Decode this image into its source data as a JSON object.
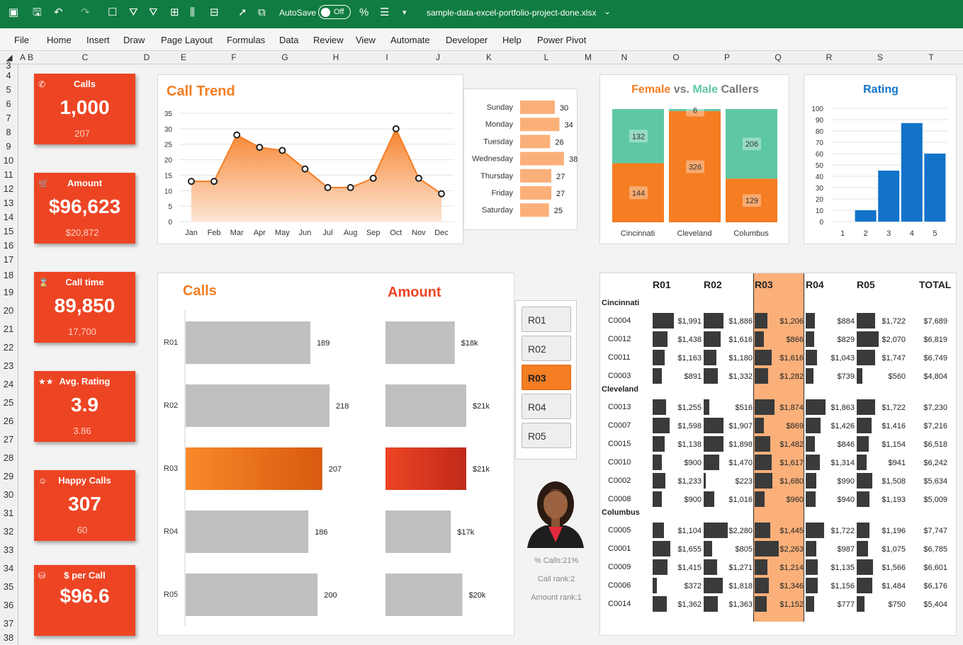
{
  "titlebar": {
    "autosave": "AutoSave",
    "autosave_state": "Off",
    "filename": "sample-data-excel-portfolio-project-done.xlsx"
  },
  "ribbon": [
    "File",
    "Home",
    "Insert",
    "Draw",
    "Page Layout",
    "Formulas",
    "Data",
    "Review",
    "View",
    "Automate",
    "Developer",
    "Help",
    "Power Pivot"
  ],
  "columns": [
    "A",
    "B",
    "C",
    "D",
    "E",
    "F",
    "G",
    "H",
    "I",
    "J",
    "K",
    "L",
    "M",
    "N",
    "O",
    "P",
    "Q",
    "R",
    "S",
    "T"
  ],
  "rows": [
    "3",
    "4",
    "5",
    "6",
    "7",
    "8",
    "9",
    "10",
    "11",
    "12",
    "13",
    "14",
    "15",
    "16",
    "17",
    "18",
    "19",
    "20",
    "21",
    "22",
    "23",
    "24",
    "25",
    "26",
    "27",
    "28",
    "29",
    "30",
    "31",
    "32",
    "33",
    "34",
    "35",
    "36",
    "37",
    "38"
  ],
  "kpis": [
    {
      "label": "Calls",
      "value": "1,000",
      "sub": "207",
      "icon": "phone-icon"
    },
    {
      "label": "Amount",
      "value": "$96,623",
      "sub": "$20,872",
      "icon": "cart-icon"
    },
    {
      "label": "Call time",
      "value": "89,850",
      "sub": "17,700",
      "icon": "hourglass-icon"
    },
    {
      "label": "Avg. Rating",
      "value": "3.9",
      "sub": "3.86",
      "icon": "stars-icon"
    },
    {
      "label": "Happy Calls",
      "value": "307",
      "sub": "60",
      "icon": "smiley-icon"
    },
    {
      "label": "$ per Call",
      "value": "$96.6",
      "sub": "",
      "icon": "coins-icon"
    }
  ],
  "trend": {
    "title": "Call Trend"
  },
  "weekday": {
    "title": ""
  },
  "gender": {
    "title_female": "Female",
    "title_vs": "vs.",
    "title_male": "Male",
    "title_callers": "Callers"
  },
  "rating": {
    "title": "Rating"
  },
  "calls_panel": {
    "title": "Calls"
  },
  "amount_panel": {
    "title": "Amount"
  },
  "slicer": {
    "items": [
      "R01",
      "R02",
      "R03",
      "R04",
      "R05"
    ],
    "selected": "R03"
  },
  "rep": {
    "pct_calls": "% Calls:21%",
    "call_rank": "Call rank:2",
    "amount_rank": "Amount rank:1"
  },
  "matrix": {
    "headers": [
      "R01",
      "R02",
      "R03",
      "R04",
      "R05",
      "TOTAL"
    ],
    "groups": [
      {
        "name": "Cincinnati",
        "rows": [
          {
            "id": "C0004",
            "vals": [
              1991,
              1886,
              1206,
              884,
              1722
            ],
            "txt": [
              "$1,991",
              "$1,886",
              "$1,206",
              "$884",
              "$1,722",
              "$7,689"
            ]
          },
          {
            "id": "C0012",
            "vals": [
              1438,
              1616,
              866,
              829,
              2070
            ],
            "txt": [
              "$1,438",
              "$1,616",
              "$866",
              "$829",
              "$2,070",
              "$6,819"
            ]
          },
          {
            "id": "C0011",
            "vals": [
              1163,
              1180,
              1616,
              1043,
              1747
            ],
            "txt": [
              "$1,163",
              "$1,180",
              "$1,616",
              "$1,043",
              "$1,747",
              "$6,749"
            ]
          },
          {
            "id": "C0003",
            "vals": [
              891,
              1332,
              1282,
              739,
              560
            ],
            "txt": [
              "$891",
              "$1,332",
              "$1,282",
              "$739",
              "$560",
              "$4,804"
            ]
          }
        ]
      },
      {
        "name": "Cleveland",
        "rows": [
          {
            "id": "C0013",
            "vals": [
              1255,
              516,
              1874,
              1863,
              1722
            ],
            "txt": [
              "$1,255",
              "$516",
              "$1,874",
              "$1,863",
              "$1,722",
              "$7,230"
            ]
          },
          {
            "id": "C0007",
            "vals": [
              1598,
              1907,
              869,
              1426,
              1416
            ],
            "txt": [
              "$1,598",
              "$1,907",
              "$869",
              "$1,426",
              "$1,416",
              "$7,216"
            ]
          },
          {
            "id": "C0015",
            "vals": [
              1138,
              1898,
              1482,
              846,
              1154
            ],
            "txt": [
              "$1,138",
              "$1,898",
              "$1,482",
              "$846",
              "$1,154",
              "$6,518"
            ]
          },
          {
            "id": "C0010",
            "vals": [
              900,
              1470,
              1617,
              1314,
              941
            ],
            "txt": [
              "$900",
              "$1,470",
              "$1,617",
              "$1,314",
              "$941",
              "$6,242"
            ]
          },
          {
            "id": "C0002",
            "vals": [
              1233,
              223,
              1680,
              990,
              1508
            ],
            "txt": [
              "$1,233",
              "$223",
              "$1,680",
              "$990",
              "$1,508",
              "$5,634"
            ]
          },
          {
            "id": "C0008",
            "vals": [
              900,
              1016,
              960,
              940,
              1193
            ],
            "txt": [
              "$900",
              "$1,016",
              "$960",
              "$940",
              "$1,193",
              "$5,009"
            ]
          }
        ]
      },
      {
        "name": "Columbus",
        "rows": [
          {
            "id": "C0005",
            "vals": [
              1104,
              2280,
              1445,
              1722,
              1196
            ],
            "txt": [
              "$1,104",
              "$2,280",
              "$1,445",
              "$1,722",
              "$1,196",
              "$7,747"
            ]
          },
          {
            "id": "C0001",
            "vals": [
              1655,
              805,
              2263,
              987,
              1075
            ],
            "txt": [
              "$1,655",
              "$805",
              "$2,263",
              "$987",
              "$1,075",
              "$6,785"
            ]
          },
          {
            "id": "C0009",
            "vals": [
              1415,
              1271,
              1214,
              1135,
              1566
            ],
            "txt": [
              "$1,415",
              "$1,271",
              "$1,214",
              "$1,135",
              "$1,566",
              "$6,601"
            ]
          },
          {
            "id": "C0006",
            "vals": [
              372,
              1818,
              1346,
              1156,
              1484
            ],
            "txt": [
              "$372",
              "$1,818",
              "$1,346",
              "$1,156",
              "$1,484",
              "$6,176"
            ]
          },
          {
            "id": "C0014",
            "vals": [
              1362,
              1363,
              1152,
              777,
              750
            ],
            "txt": [
              "$1,362",
              "$1,363",
              "$1,152",
              "$777",
              "$750",
              "$5,404"
            ]
          }
        ]
      }
    ]
  },
  "colors": {
    "accent": "#ed4524",
    "orange": "#f57d22",
    "teal": "#5ec8a4",
    "blue": "#1273c9",
    "grey": "#c0c0c0",
    "excel_green": "#107c41"
  },
  "chart_data": [
    {
      "type": "area",
      "title": "Call Trend",
      "categories": [
        "Jan",
        "Feb",
        "Mar",
        "Apr",
        "May",
        "Jun",
        "Jul",
        "Aug",
        "Sep",
        "Oct",
        "Nov",
        "Dec"
      ],
      "values": [
        13,
        13,
        28,
        24,
        23,
        17,
        11,
        11,
        14,
        30,
        14,
        9
      ],
      "ylim": [
        0,
        35
      ],
      "yticks": [
        "35",
        "30",
        "25",
        "20",
        "15",
        "10",
        "5",
        "0"
      ]
    },
    {
      "type": "bar",
      "categories": [
        "Sunday",
        "Monday",
        "Tuesday",
        "Wednesday",
        "Thursday",
        "Friday",
        "Saturday"
      ],
      "values": [
        30,
        34,
        26,
        38,
        27,
        27,
        25
      ],
      "labels": [
        "30",
        "34",
        "26",
        "38",
        "27",
        "27",
        "25"
      ]
    },
    {
      "type": "bar",
      "title": "Female vs. Male Callers",
      "categories": [
        "Cincinnati",
        "Cleveland",
        "Columbus"
      ],
      "series": [
        {
          "name": "Female",
          "values": [
            144,
            326,
            129
          ],
          "labels": [
            "144",
            "326",
            "129"
          ]
        },
        {
          "name": "Male",
          "values": [
            132,
            6,
            206
          ],
          "labels": [
            "132",
            "6",
            "206"
          ]
        }
      ]
    },
    {
      "type": "bar",
      "title": "Rating",
      "categories": [
        "1",
        "2",
        "3",
        "4",
        "5"
      ],
      "values": [
        0,
        10,
        45,
        87,
        60
      ],
      "ylim": [
        0,
        100
      ],
      "yticks": [
        "100",
        "90",
        "80",
        "70",
        "60",
        "50",
        "40",
        "30",
        "20",
        "10",
        "0"
      ]
    },
    {
      "type": "bar",
      "title": "Calls",
      "categories": [
        "R01",
        "R02",
        "R03",
        "R04",
        "R05"
      ],
      "values": [
        189,
        218,
        207,
        186,
        200
      ],
      "labels": [
        "189",
        "218",
        "207",
        "186",
        "200"
      ]
    },
    {
      "type": "bar",
      "title": "Amount",
      "categories": [
        "R01",
        "R02",
        "R03",
        "R04",
        "R05"
      ],
      "values": [
        18,
        21,
        21,
        17,
        20
      ],
      "labels": [
        "$18k",
        "$21k",
        "$21k",
        "$17k",
        "$20k"
      ]
    }
  ]
}
